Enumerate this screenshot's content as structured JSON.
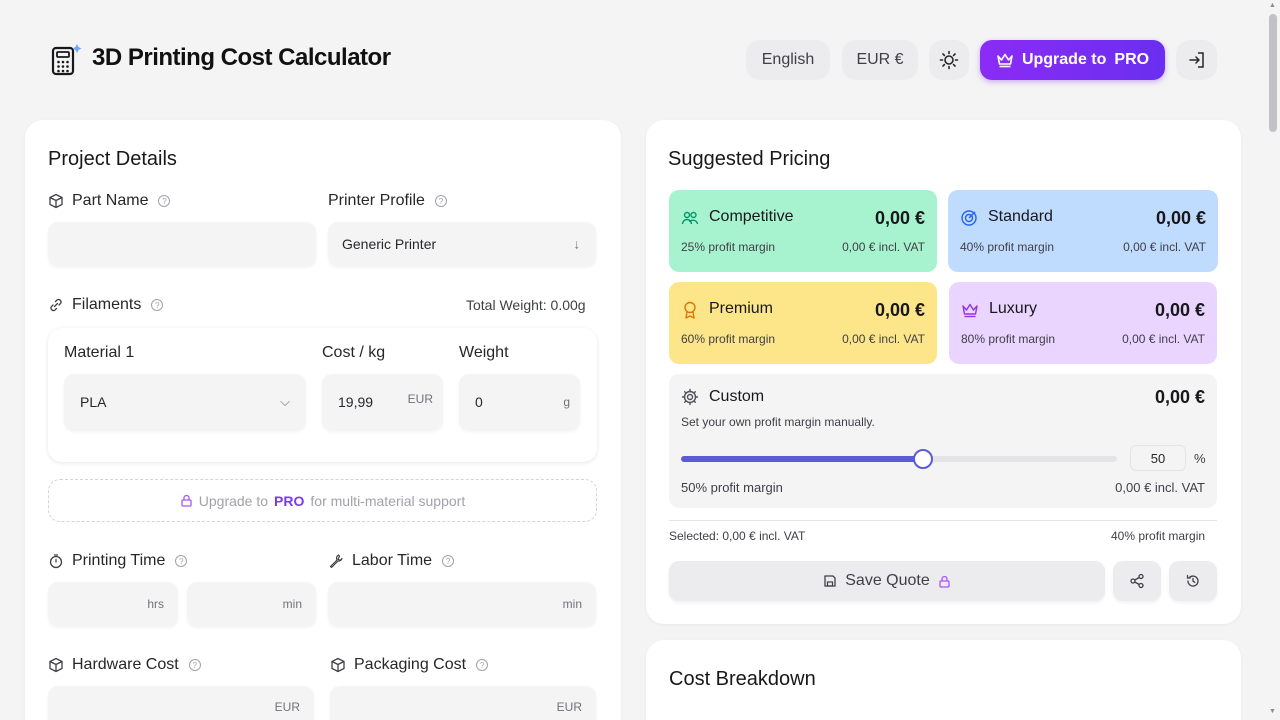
{
  "header": {
    "title": "3D Printing Cost Calculator",
    "language": "English",
    "currency": "EUR €",
    "upgrade_label": "Upgrade to",
    "upgrade_pro": "PRO"
  },
  "project": {
    "title": "Project Details",
    "part_name_label": "Part Name",
    "part_name_value": "",
    "printer_profile_label": "Printer Profile",
    "printer_profile_value": "Generic Printer",
    "filaments_label": "Filaments",
    "total_weight": "Total Weight: 0.00g",
    "material_label": "Material 1",
    "cost_label": "Cost / kg",
    "weight_label": "Weight",
    "material_value": "PLA",
    "cost_value": "19,99",
    "cost_unit": "EUR",
    "weight_value": "0",
    "weight_unit": "g",
    "multi_prefix": "Upgrade to",
    "multi_pro": "PRO",
    "multi_suffix": "for multi-material support",
    "printing_time_label": "Printing Time",
    "hrs_unit": "hrs",
    "min_unit": "min",
    "labor_time_label": "Labor Time",
    "labor_unit": "min",
    "hardware_label": "Hardware Cost",
    "hardware_unit": "EUR",
    "packaging_label": "Packaging Cost",
    "packaging_unit": "EUR"
  },
  "pricing": {
    "title": "Suggested Pricing",
    "tiers": [
      {
        "name": "Competitive",
        "price": "0,00 €",
        "margin": "25% profit margin",
        "vat": "0,00 € incl. VAT",
        "color": "#a7f3d0",
        "icon": "users-icon"
      },
      {
        "name": "Standard",
        "price": "0,00 €",
        "margin": "40% profit margin",
        "vat": "0,00 € incl. VAT",
        "color": "#bfdbfe",
        "icon": "target-icon"
      },
      {
        "name": "Premium",
        "price": "0,00 €",
        "margin": "60% profit margin",
        "vat": "0,00 € incl. VAT",
        "color": "#fde68a",
        "icon": "award-icon"
      },
      {
        "name": "Luxury",
        "price": "0,00 €",
        "margin": "80% profit margin",
        "vat": "0,00 € incl. VAT",
        "color": "#e9d5ff",
        "icon": "crown-icon"
      }
    ],
    "custom": {
      "name": "Custom",
      "price": "0,00 €",
      "description": "Set your own profit margin manually.",
      "slider_value": 50,
      "slider_max": 100,
      "percent_value": "50",
      "percent_sign": "%",
      "margin": "50% profit margin",
      "vat": "0,00 € incl. VAT"
    },
    "selected": "Selected: 0,00 € incl. VAT",
    "selected_margin": "40% profit margin",
    "save_label": "Save Quote"
  },
  "breakdown": {
    "title": "Cost Breakdown"
  },
  "colors": {
    "accent": "#6a2ef0",
    "slider": "#5b5bd6"
  }
}
